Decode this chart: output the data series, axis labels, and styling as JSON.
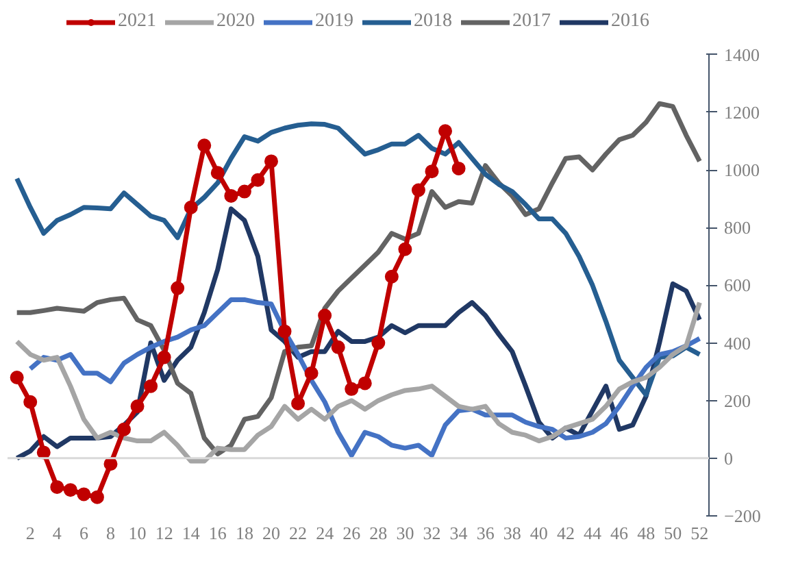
{
  "chart_data": {
    "type": "line",
    "x": [
      1,
      2,
      3,
      4,
      5,
      6,
      7,
      8,
      9,
      10,
      11,
      12,
      13,
      14,
      15,
      16,
      17,
      18,
      19,
      20,
      21,
      22,
      23,
      24,
      25,
      26,
      27,
      28,
      29,
      30,
      31,
      32,
      33,
      34,
      35,
      36,
      37,
      38,
      39,
      40,
      41,
      42,
      43,
      44,
      45,
      46,
      47,
      48,
      49,
      50,
      51,
      52
    ],
    "xlim": [
      0.3,
      52.7
    ],
    "xticks": [
      2,
      4,
      6,
      8,
      10,
      12,
      14,
      16,
      18,
      20,
      22,
      24,
      26,
      28,
      30,
      32,
      34,
      36,
      38,
      40,
      42,
      44,
      46,
      48,
      50,
      52
    ],
    "ylim": [
      -200,
      1400
    ],
    "yticks": [
      -200,
      0,
      200,
      400,
      600,
      800,
      1000,
      1200,
      1400
    ],
    "legend": "top",
    "grid": false,
    "line_style": "solid",
    "ref_lines": [
      {
        "axis": "y",
        "value": 0,
        "color": "#d9d9d9"
      }
    ],
    "series": [
      {
        "name": "2021",
        "color": "#c00000",
        "marker": "circle",
        "values": [
          280,
          195,
          20,
          -100,
          -110,
          -125,
          -135,
          -20,
          100,
          180,
          250,
          350,
          590,
          870,
          1085,
          990,
          910,
          925,
          965,
          1030,
          440,
          190,
          295,
          495,
          385,
          240,
          260,
          400,
          630,
          725,
          930,
          995,
          1135,
          1005,
          null,
          null,
          null,
          null,
          null,
          null,
          null,
          null,
          null,
          null,
          null,
          null,
          null,
          null,
          null,
          null,
          null,
          null
        ]
      },
      {
        "name": "2020",
        "color": "#a5a5a5",
        "values": [
          405,
          360,
          340,
          350,
          250,
          135,
          70,
          90,
          70,
          60,
          60,
          90,
          45,
          -10,
          -10,
          35,
          30,
          30,
          80,
          110,
          180,
          135,
          170,
          135,
          180,
          200,
          170,
          200,
          220,
          235,
          240,
          250,
          215,
          180,
          170,
          180,
          120,
          90,
          80,
          60,
          75,
          105,
          120,
          135,
          180,
          240,
          265,
          280,
          315,
          360,
          390,
          540
        ]
      },
      {
        "name": "2019",
        "color": "#4472c4",
        "values": [
          null,
          310,
          350,
          340,
          360,
          295,
          295,
          265,
          330,
          360,
          385,
          405,
          420,
          445,
          460,
          505,
          550,
          550,
          540,
          535,
          440,
          360,
          270,
          195,
          90,
          10,
          90,
          75,
          45,
          35,
          45,
          10,
          115,
          165,
          170,
          150,
          150,
          150,
          125,
          110,
          100,
          70,
          75,
          90,
          120,
          180,
          250,
          315,
          360,
          370,
          390,
          415
        ]
      },
      {
        "name": "2018",
        "color": "#255e91",
        "values": [
          970,
          870,
          780,
          825,
          845,
          870,
          868,
          865,
          920,
          880,
          840,
          825,
          765,
          865,
          905,
          955,
          1040,
          1115,
          1100,
          1130,
          1145,
          1155,
          1160,
          1158,
          1145,
          1100,
          1055,
          1070,
          1090,
          1090,
          1120,
          1075,
          1055,
          1095,
          1040,
          985,
          950,
          925,
          880,
          830,
          830,
          780,
          700,
          600,
          475,
          340,
          280,
          220,
          350,
          355,
          385,
          360
        ]
      },
      {
        "name": "2017",
        "color": "#636363",
        "values": [
          505,
          505,
          512,
          520,
          515,
          510,
          540,
          550,
          555,
          480,
          460,
          375,
          260,
          225,
          70,
          15,
          45,
          135,
          145,
          210,
          370,
          385,
          390,
          520,
          580,
          625,
          670,
          715,
          780,
          760,
          780,
          925,
          870,
          890,
          885,
          1015,
          955,
          910,
          845,
          865,
          955,
          1040,
          1045,
          1000,
          1055,
          1105,
          1120,
          1165,
          1230,
          1220,
          1120,
          1030
        ]
      },
      {
        "name": "2016",
        "color": "#203864",
        "values": [
          0,
          25,
          75,
          40,
          70,
          70,
          70,
          75,
          115,
          160,
          400,
          270,
          340,
          385,
          505,
          655,
          865,
          825,
          700,
          445,
          405,
          350,
          370,
          370,
          440,
          405,
          405,
          420,
          460,
          435,
          460,
          460,
          460,
          505,
          540,
          495,
          430,
          370,
          250,
          125,
          70,
          105,
          80,
          165,
          250,
          100,
          115,
          215,
          400,
          605,
          580,
          480
        ]
      }
    ]
  }
}
